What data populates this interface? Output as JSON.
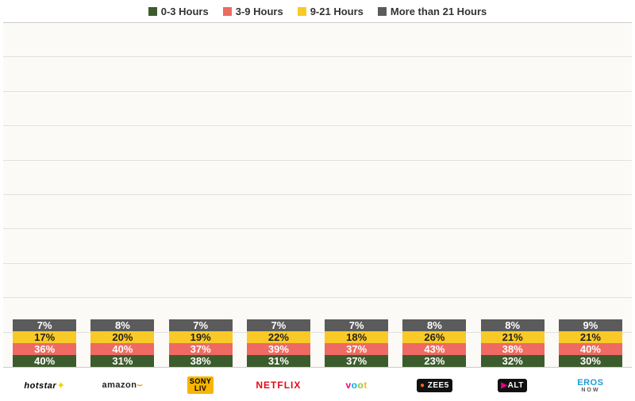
{
  "chart": {
    "type": "stacked-bar",
    "background_color": "#fbfaf7",
    "grid_color": "#e3e1dc",
    "ymax": 100,
    "grid_steps": 10,
    "legend": [
      {
        "label": "0-3 Hours",
        "color": "#3d5c2d"
      },
      {
        "label": "3-9 Hours",
        "color": "#ee6a62"
      },
      {
        "label": "9-21 Hours",
        "color": "#f9c927"
      },
      {
        "label": "More than 21 Hours",
        "color": "#5b5b5b"
      }
    ],
    "segment_text_color": [
      "#ffffff",
      "#ffffff",
      "#222222",
      "#ffffff"
    ],
    "label_fontsize": 13,
    "legend_fontsize": 13,
    "categories": [
      {
        "key": "hotstar",
        "brand": "hotstar",
        "values": [
          40,
          36,
          17,
          7
        ]
      },
      {
        "key": "amazon",
        "brand": "amazon",
        "values": [
          31,
          40,
          20,
          8
        ]
      },
      {
        "key": "sonyliv",
        "brand": "SONY LIV",
        "values": [
          38,
          37,
          19,
          7
        ]
      },
      {
        "key": "netflix",
        "brand": "NETFLIX",
        "values": [
          31,
          39,
          22,
          7
        ]
      },
      {
        "key": "voot",
        "brand": "voot",
        "values": [
          37,
          37,
          18,
          7
        ]
      },
      {
        "key": "zee5",
        "brand": "ZEE5",
        "values": [
          23,
          43,
          26,
          8
        ]
      },
      {
        "key": "alt",
        "brand": "ALT",
        "values": [
          32,
          38,
          21,
          8
        ]
      },
      {
        "key": "eros",
        "brand": "EROS NOW",
        "values": [
          30,
          40,
          21,
          9
        ]
      }
    ]
  }
}
